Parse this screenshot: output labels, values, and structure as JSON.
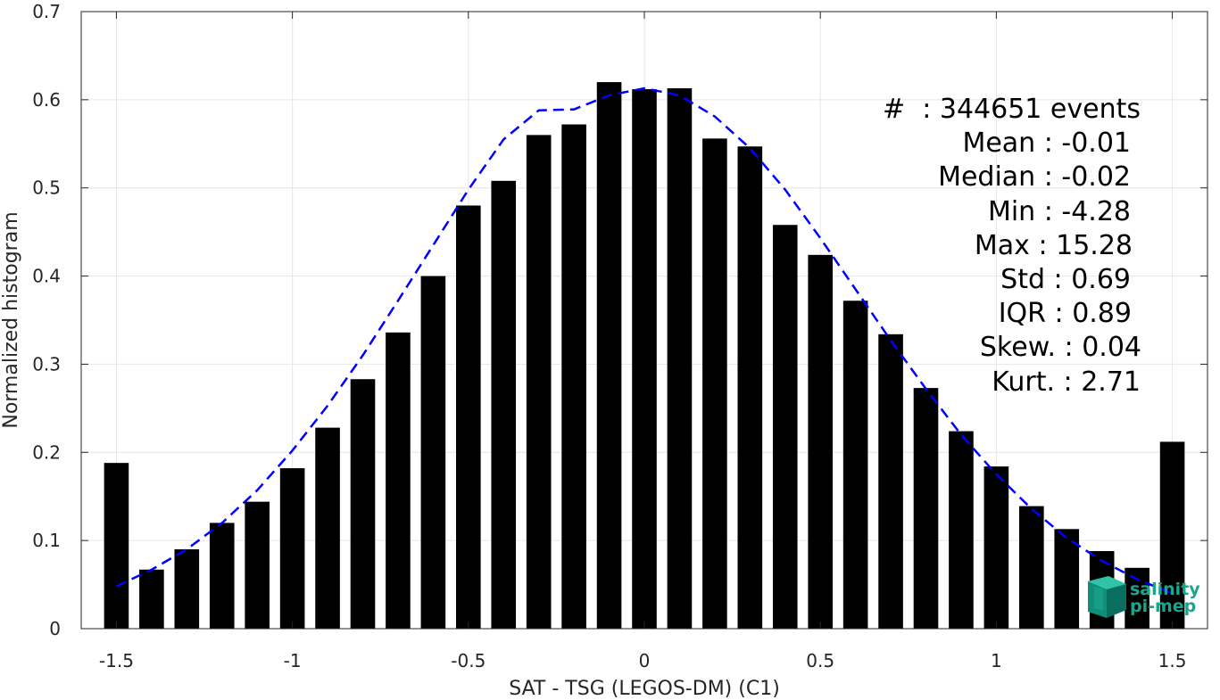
{
  "chart_data": {
    "type": "bar",
    "xlabel": "SAT - TSG (LEGOS-DM) (C1)",
    "ylabel": "Normalized histogram",
    "xlim": [
      -1.6,
      1.6
    ],
    "ylim": [
      0,
      0.7
    ],
    "xticks": [
      -1.5,
      -1,
      -0.5,
      0,
      0.5,
      1,
      1.5
    ],
    "xtick_labels": [
      "-1.5",
      "-1",
      "-0.5",
      "0",
      "0.5",
      "1",
      "1.5"
    ],
    "yticks": [
      0,
      0.1,
      0.2,
      0.3,
      0.4,
      0.5,
      0.6,
      0.7
    ],
    "ytick_labels": [
      "0",
      "0.1",
      "0.2",
      "0.3",
      "0.4",
      "0.5",
      "0.6",
      "0.7"
    ],
    "grid": true,
    "bar_color": "#000000",
    "bar_width": 0.07,
    "series": [
      {
        "type": "bar",
        "x": [
          -1.5,
          -1.4,
          -1.3,
          -1.2,
          -1.1,
          -1.0,
          -0.9,
          -0.8,
          -0.7,
          -0.6,
          -0.5,
          -0.4,
          -0.3,
          -0.2,
          -0.1,
          0.0,
          0.1,
          0.2,
          0.3,
          0.4,
          0.5,
          0.6,
          0.7,
          0.8,
          0.9,
          1.0,
          1.1,
          1.2,
          1.3,
          1.4,
          1.5
        ],
        "values": [
          0.188,
          0.067,
          0.09,
          0.12,
          0.144,
          0.182,
          0.228,
          0.283,
          0.336,
          0.4,
          0.48,
          0.508,
          0.56,
          0.572,
          0.62,
          0.612,
          0.613,
          0.556,
          0.547,
          0.458,
          0.424,
          0.372,
          0.334,
          0.273,
          0.224,
          0.184,
          0.139,
          0.113,
          0.088,
          0.069,
          0.212
        ]
      },
      {
        "type": "line",
        "style": "dashed",
        "color": "#0000ff",
        "x": [
          -1.5,
          -1.4,
          -1.3,
          -1.2,
          -1.1,
          -1.0,
          -0.9,
          -0.8,
          -0.7,
          -0.6,
          -0.5,
          -0.4,
          -0.3,
          -0.2,
          -0.1,
          0.0,
          0.1,
          0.2,
          0.3,
          0.4,
          0.5,
          0.6,
          0.7,
          0.8,
          0.9,
          1.0,
          1.1,
          1.2,
          1.3,
          1.4,
          1.5
        ],
        "values": [
          0.048,
          0.067,
          0.09,
          0.12,
          0.157,
          0.202,
          0.253,
          0.31,
          0.372,
          0.435,
          0.498,
          0.555,
          0.588,
          0.589,
          0.605,
          0.613,
          0.605,
          0.581,
          0.545,
          0.498,
          0.443,
          0.385,
          0.327,
          0.272,
          0.22,
          0.175,
          0.136,
          0.103,
          0.077,
          0.056,
          0.04
        ]
      }
    ],
    "annotations": [
      "#  : 344651 events",
      "Mean : -0.01",
      "Median : -0.02",
      "Min : -4.28",
      "Max : 15.28",
      "Std : 0.69",
      "IQR : 0.89",
      "Skew. : 0.04",
      "Kurt. : 2.71"
    ]
  },
  "logo": {
    "line1": "salinity",
    "line2": "pi-mep"
  }
}
